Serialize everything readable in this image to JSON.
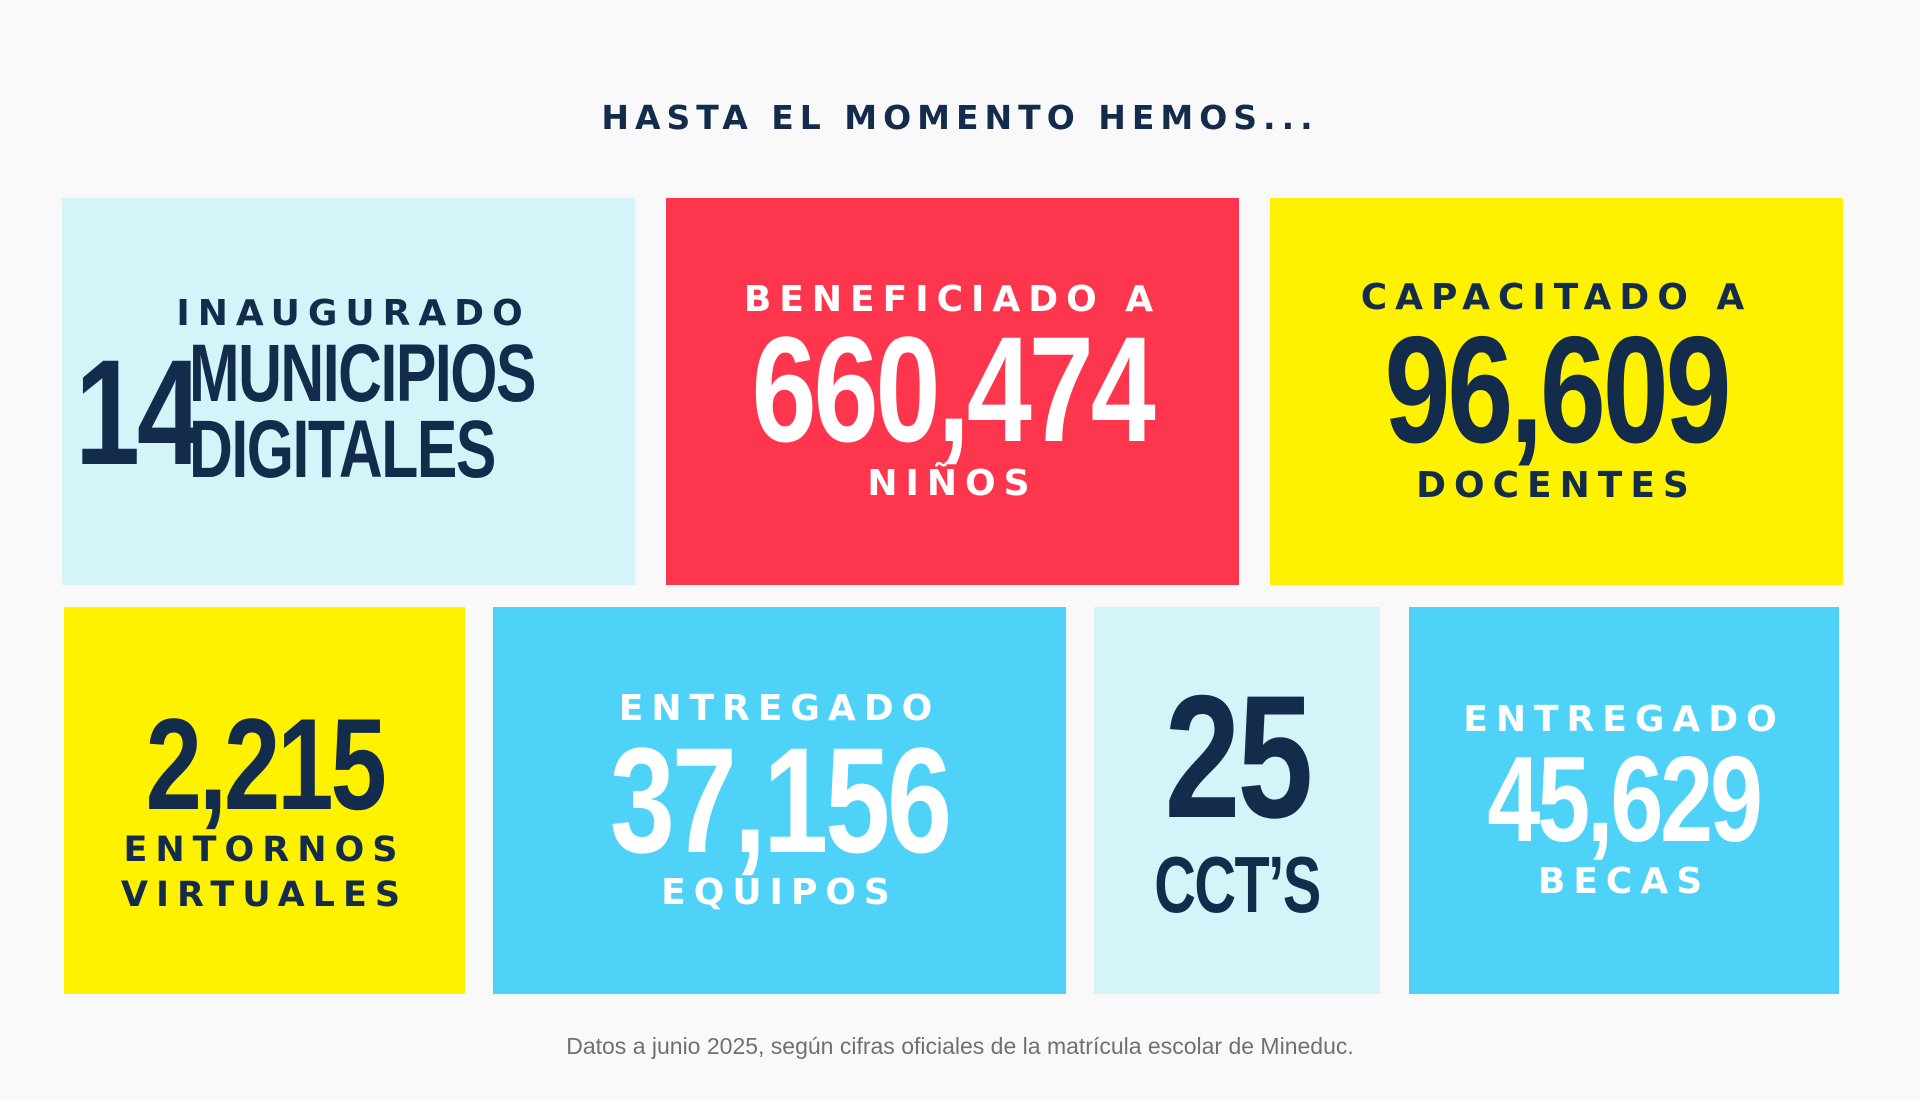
{
  "heading": "HASTA EL MOMENTO HEMOS...",
  "colors": {
    "navy": "#132c4b",
    "light_blue": "#d4f4f9",
    "red": "#fe364d",
    "yellow": "#fef200",
    "sky_blue": "#4fd2f8",
    "background": "#f9f9f9"
  },
  "cards": {
    "municipios": {
      "label": "INAUGURADO",
      "number": "14",
      "line1": "MUNICIPIOS",
      "line2": "DIGITALES"
    },
    "ninos": {
      "label": "BENEFICIADO A",
      "number": "660,474",
      "unit": "NIÑOS"
    },
    "docentes": {
      "label": "CAPACITADO A",
      "number": "96,609",
      "unit": "DOCENTES"
    },
    "entornos": {
      "number": "2,215",
      "unit1": "ENTORNOS",
      "unit2": "VIRTUALES"
    },
    "equipos": {
      "label": "ENTREGADO",
      "number": "37,156",
      "unit": "EQUIPOS"
    },
    "ccts": {
      "number": "25",
      "unit": "CCT’S"
    },
    "becas": {
      "label": "ENTREGADO",
      "number": "45,629",
      "unit": "BECAS"
    }
  },
  "footer": "Datos a junio 2025, según cifras oficiales de la matrícula escolar de Mineduc."
}
